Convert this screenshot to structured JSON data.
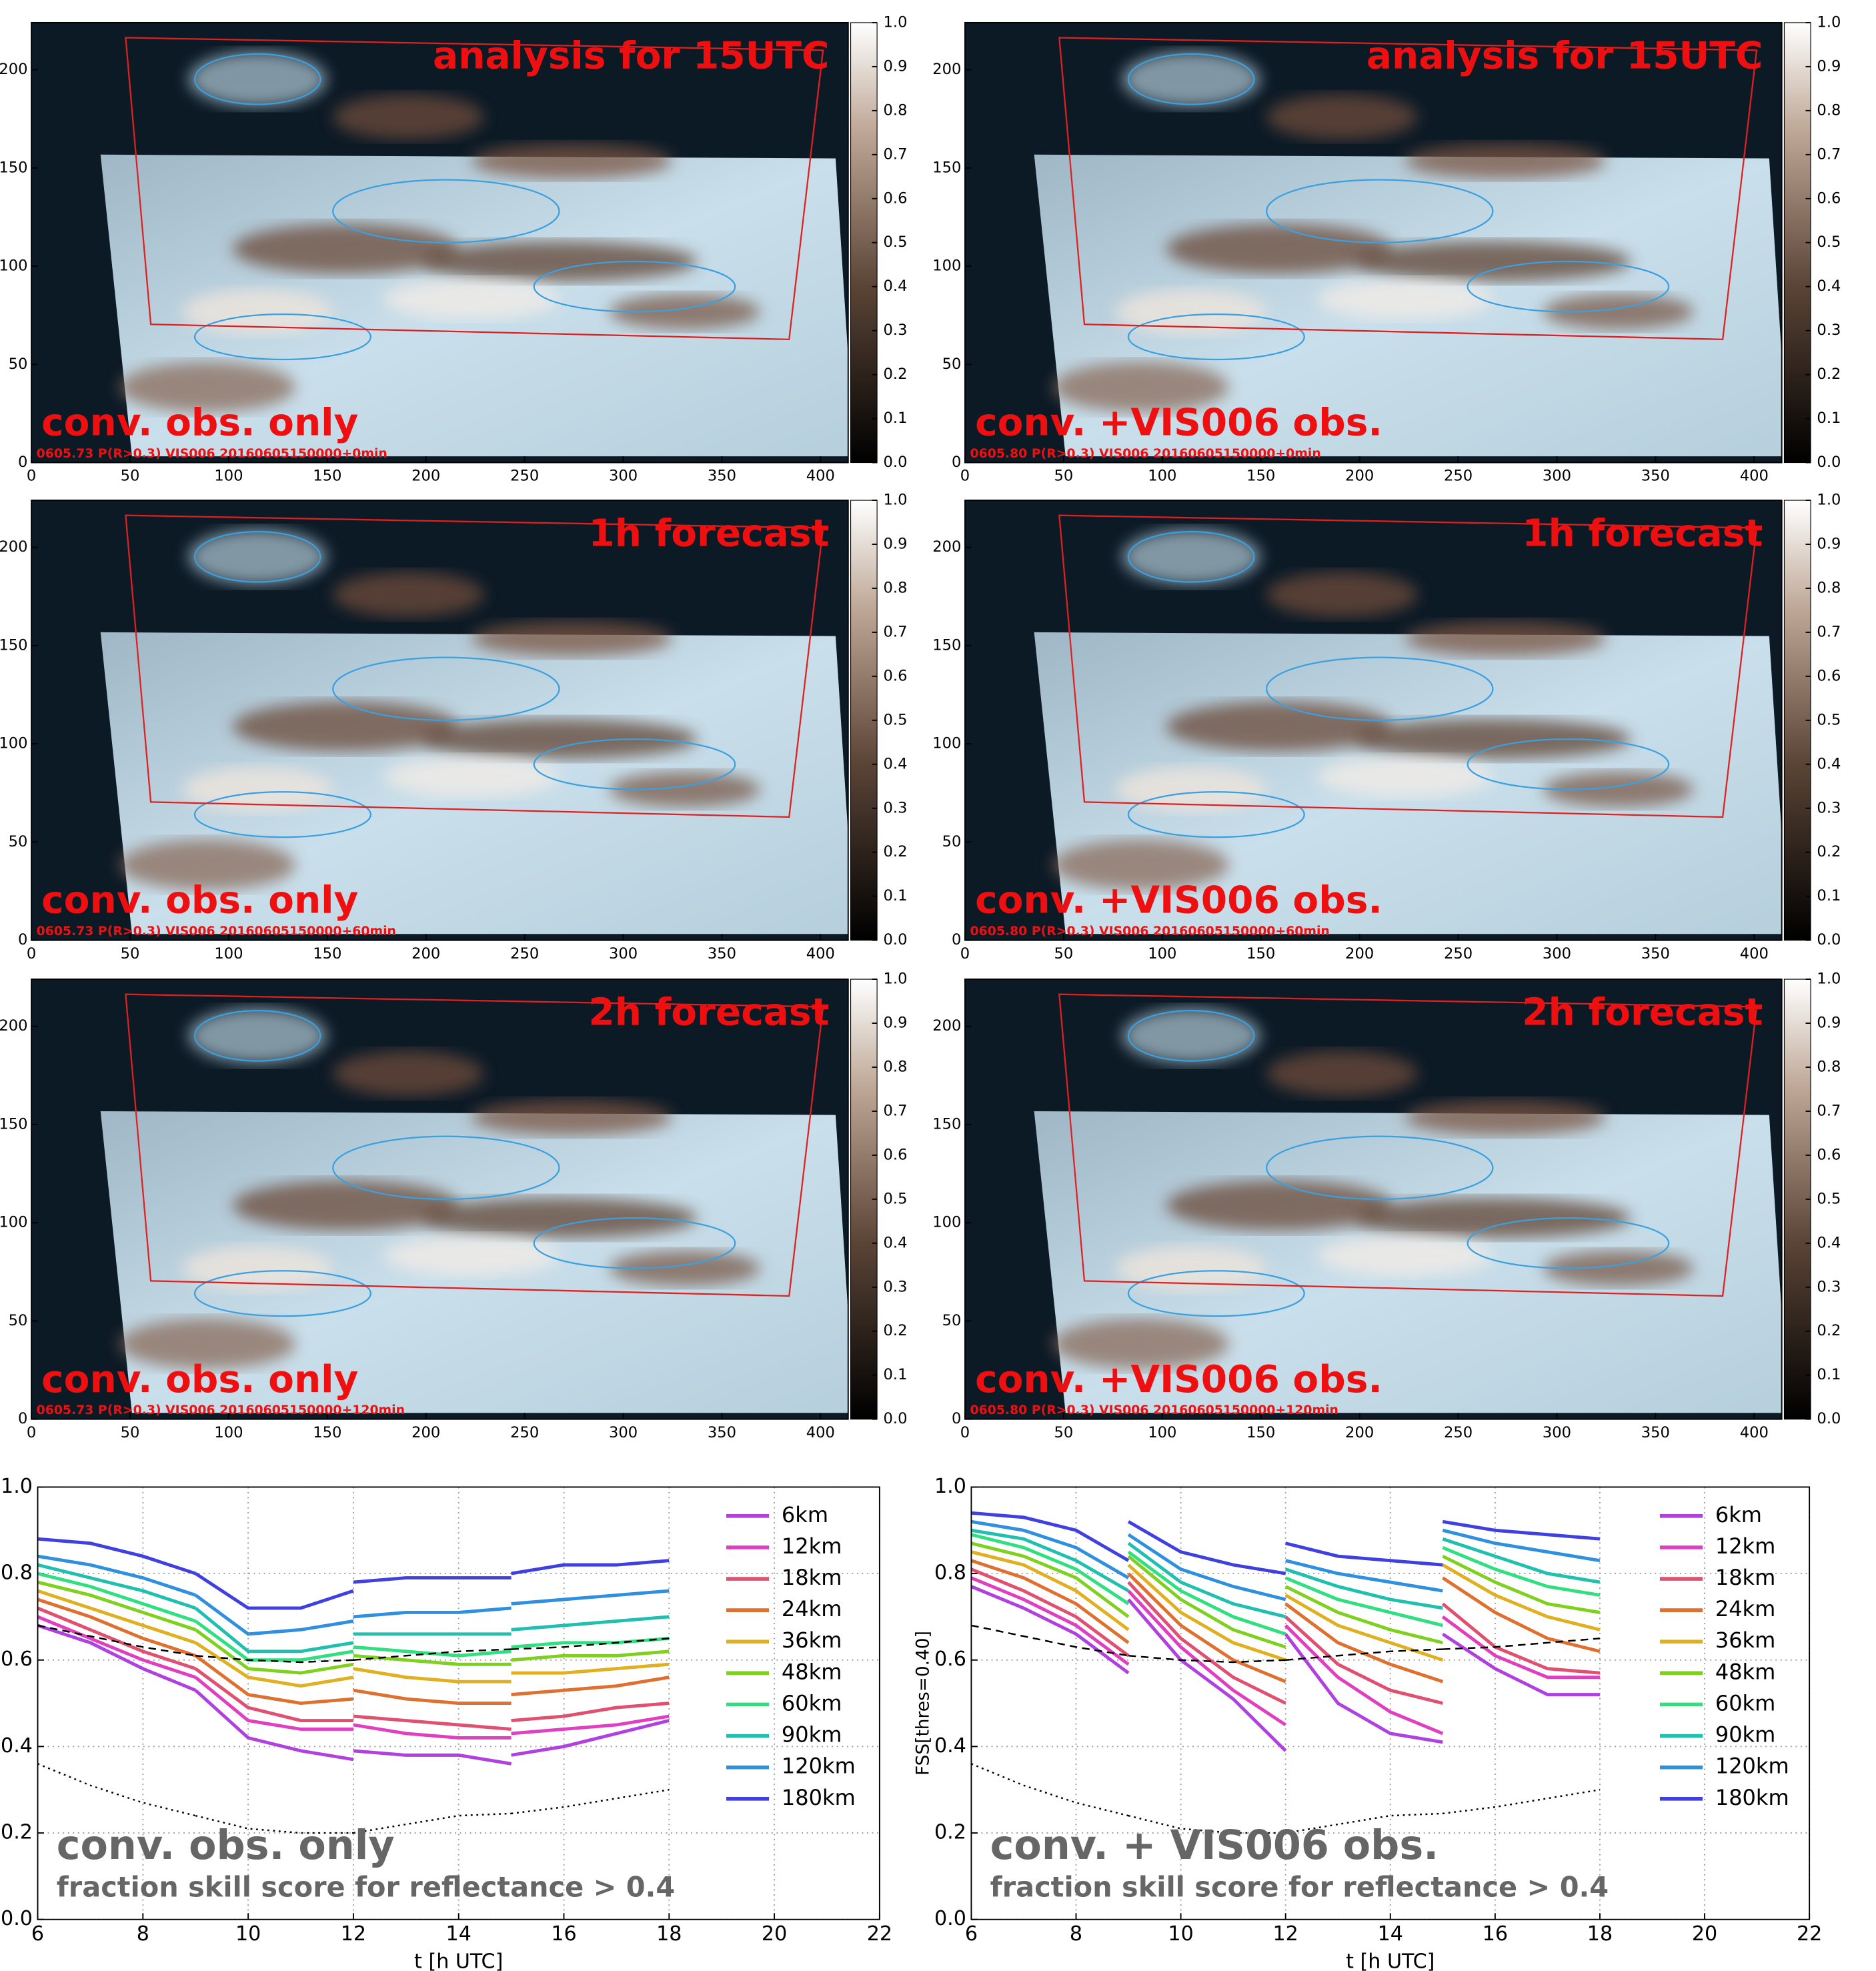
{
  "maps": {
    "xlim": [
      0,
      414
    ],
    "xticks": [
      0,
      50,
      100,
      150,
      200,
      250,
      300,
      350,
      400
    ],
    "ylim": [
      0,
      224
    ],
    "yticks": [
      0,
      50,
      100,
      150,
      200
    ],
    "colorbar_lim": [
      0,
      1
    ],
    "colorbar_ticks": [
      {
        "value": 0,
        "label": "0.0"
      },
      0.1,
      0.2,
      0.3,
      0.4,
      0.5,
      0.6,
      0.7,
      0.8,
      0.9,
      {
        "value": 1,
        "label": "1.0"
      }
    ],
    "panels": [
      {
        "title": "analysis for 15UTC",
        "label": "conv. obs. only",
        "caption": "0605.73 P(R>0.3) VIS006 20160605150000+0min"
      },
      {
        "title": "analysis for 15UTC",
        "label": "conv. +VIS006 obs.",
        "caption": "0605.80 P(R>0.3) VIS006 20160605150000+0min"
      },
      {
        "title": "1h forecast",
        "label": "conv. obs. only",
        "caption": "0605.73 P(R>0.3) VIS006 20160605150000+60min"
      },
      {
        "title": "1h forecast",
        "label": "conv. +VIS006 obs.",
        "caption": "0605.80 P(R>0.3) VIS006 20160605150000+60min"
      },
      {
        "title": "2h forecast",
        "label": "conv. obs. only",
        "caption": "0605.73 P(R>0.3) VIS006 20160605150000+120min"
      },
      {
        "title": "2h forecast",
        "label": "conv. +VIS006 obs.",
        "caption": "0605.80 P(R>0.3) VIS006 20160605150000+120min"
      }
    ]
  },
  "chart_data": [
    {
      "type": "line",
      "title": "conv. obs. only",
      "subtitle": "fraction skill score for reflectance > 0.4",
      "xlabel": "t [h UTC]",
      "xlim": [
        6,
        22
      ],
      "xticks": [
        6,
        8,
        10,
        12,
        14,
        16,
        18,
        20,
        22
      ],
      "ylim": [
        0,
        1
      ],
      "yticks": [
        {
          "value": 0,
          "label": "0.0"
        },
        0.2,
        0.4,
        0.6,
        0.8,
        {
          "value": 1,
          "label": "1.0"
        }
      ],
      "grid": true,
      "x": [
        6,
        7,
        8,
        9,
        9,
        9,
        10,
        11,
        12,
        12,
        12,
        13,
        14,
        15,
        15,
        15,
        16,
        17,
        18
      ],
      "series": [
        {
          "name": "6km",
          "color": "#b040e0",
          "values": [
            0.68,
            0.64,
            0.58,
            0.53,
            null,
            0.53,
            0.42,
            0.39,
            0.37,
            null,
            0.39,
            0.38,
            0.38,
            0.36,
            null,
            0.38,
            0.4,
            0.43,
            0.46
          ]
        },
        {
          "name": "12km",
          "color": "#e040c0",
          "values": [
            0.7,
            0.65,
            0.6,
            0.56,
            null,
            0.56,
            0.46,
            0.44,
            0.44,
            null,
            0.45,
            0.43,
            0.42,
            0.42,
            null,
            0.43,
            0.44,
            0.45,
            0.47
          ]
        },
        {
          "name": "18km",
          "color": "#e05070",
          "values": [
            0.72,
            0.67,
            0.62,
            0.58,
            null,
            0.58,
            0.49,
            0.46,
            0.46,
            null,
            0.47,
            0.46,
            0.45,
            0.44,
            null,
            0.46,
            0.47,
            0.49,
            0.5
          ]
        },
        {
          "name": "24km",
          "color": "#e07030",
          "values": [
            0.74,
            0.7,
            0.65,
            0.61,
            null,
            0.61,
            0.52,
            0.5,
            0.51,
            null,
            0.53,
            0.51,
            0.5,
            0.5,
            null,
            0.52,
            0.53,
            0.54,
            0.56
          ]
        },
        {
          "name": "36km",
          "color": "#e0b020",
          "values": [
            0.76,
            0.72,
            0.68,
            0.64,
            null,
            0.64,
            0.56,
            0.54,
            0.56,
            null,
            0.58,
            0.56,
            0.55,
            0.55,
            null,
            0.57,
            0.57,
            0.58,
            0.59
          ]
        },
        {
          "name": "48km",
          "color": "#80d020",
          "values": [
            0.78,
            0.75,
            0.71,
            0.67,
            null,
            0.67,
            0.58,
            0.57,
            0.59,
            null,
            0.61,
            0.6,
            0.59,
            0.59,
            null,
            0.6,
            0.61,
            0.61,
            0.62
          ]
        },
        {
          "name": "60km",
          "color": "#30e080",
          "values": [
            0.8,
            0.77,
            0.73,
            0.69,
            null,
            0.69,
            0.6,
            0.6,
            0.62,
            null,
            0.63,
            0.62,
            0.61,
            0.62,
            null,
            0.63,
            0.64,
            0.64,
            0.65
          ]
        },
        {
          "name": "90km",
          "color": "#20c0b0",
          "values": [
            0.82,
            0.79,
            0.76,
            0.72,
            null,
            0.72,
            0.62,
            0.62,
            0.64,
            null,
            0.66,
            0.66,
            0.66,
            0.66,
            null,
            0.67,
            0.68,
            0.69,
            0.7
          ]
        },
        {
          "name": "120km",
          "color": "#3090e0",
          "values": [
            0.84,
            0.82,
            0.79,
            0.75,
            null,
            0.75,
            0.66,
            0.67,
            0.69,
            null,
            0.7,
            0.71,
            0.71,
            0.72,
            null,
            0.73,
            0.74,
            0.75,
            0.76
          ]
        },
        {
          "name": "180km",
          "color": "#4040e0",
          "values": [
            0.88,
            0.87,
            0.84,
            0.8,
            null,
            0.8,
            0.72,
            0.72,
            0.76,
            null,
            0.78,
            0.79,
            0.79,
            0.79,
            null,
            0.8,
            0.82,
            0.82,
            0.83
          ]
        },
        {
          "color": "#000000",
          "line_style": "dashed",
          "values": [
            0.68,
            0.655,
            0.63,
            0.61,
            null,
            0.61,
            0.6,
            0.595,
            0.6,
            null,
            0.6,
            0.61,
            0.62,
            0.625,
            null,
            0.625,
            0.63,
            0.64,
            0.65
          ]
        },
        {
          "color": "#000000",
          "line_style": "dotted",
          "values": [
            0.36,
            0.31,
            0.27,
            0.24,
            null,
            0.24,
            0.21,
            0.2,
            0.2,
            null,
            0.2,
            0.22,
            0.24,
            0.245,
            null,
            0.245,
            0.26,
            0.28,
            0.3
          ]
        }
      ]
    },
    {
      "type": "line",
      "title": "conv. + VIS006 obs.",
      "subtitle": "fraction skill score for reflectance > 0.4",
      "xlabel": "t [h UTC]",
      "ylabel": "FSS[thres=0.40]",
      "xlim": [
        6,
        22
      ],
      "xticks": [
        6,
        8,
        10,
        12,
        14,
        16,
        18,
        20,
        22
      ],
      "ylim": [
        0,
        1
      ],
      "yticks": [
        {
          "value": 0,
          "label": "0.0"
        },
        0.2,
        0.4,
        0.6,
        0.8,
        {
          "value": 1,
          "label": "1.0"
        }
      ],
      "grid": true,
      "x": [
        6,
        7,
        8,
        9,
        9,
        9,
        10,
        11,
        12,
        12,
        12,
        13,
        14,
        15,
        15,
        15,
        16,
        17,
        18
      ],
      "series": [
        {
          "name": "6km",
          "color": "#b040e0",
          "values": [
            0.77,
            0.72,
            0.66,
            0.57,
            null,
            0.74,
            0.6,
            0.51,
            0.39,
            null,
            0.66,
            0.5,
            0.43,
            0.41,
            null,
            0.66,
            0.58,
            0.52,
            0.52
          ]
        },
        {
          "name": "12km",
          "color": "#e040c0",
          "values": [
            0.79,
            0.74,
            0.68,
            0.59,
            null,
            0.76,
            0.63,
            0.53,
            0.45,
            null,
            0.68,
            0.56,
            0.48,
            0.43,
            null,
            0.7,
            0.61,
            0.56,
            0.56
          ]
        },
        {
          "name": "18km",
          "color": "#e05070",
          "values": [
            0.81,
            0.76,
            0.7,
            0.61,
            null,
            0.78,
            0.65,
            0.56,
            0.5,
            null,
            0.7,
            0.59,
            0.53,
            0.5,
            null,
            0.73,
            0.63,
            0.58,
            0.57
          ]
        },
        {
          "name": "24km",
          "color": "#e07030",
          "values": [
            0.83,
            0.79,
            0.73,
            0.64,
            null,
            0.8,
            0.68,
            0.6,
            0.55,
            null,
            0.73,
            0.64,
            0.59,
            0.55,
            null,
            0.79,
            0.71,
            0.65,
            0.62
          ]
        },
        {
          "name": "36km",
          "color": "#e0b020",
          "values": [
            0.85,
            0.82,
            0.76,
            0.67,
            null,
            0.82,
            0.71,
            0.64,
            0.6,
            null,
            0.75,
            0.68,
            0.64,
            0.6,
            null,
            0.82,
            0.75,
            0.7,
            0.67
          ]
        },
        {
          "name": "48km",
          "color": "#80d020",
          "values": [
            0.87,
            0.84,
            0.79,
            0.7,
            null,
            0.84,
            0.74,
            0.67,
            0.63,
            null,
            0.77,
            0.71,
            0.67,
            0.64,
            null,
            0.84,
            0.78,
            0.73,
            0.71
          ]
        },
        {
          "name": "60km",
          "color": "#30e080",
          "values": [
            0.89,
            0.86,
            0.81,
            0.73,
            null,
            0.85,
            0.76,
            0.7,
            0.66,
            null,
            0.79,
            0.74,
            0.71,
            0.68,
            null,
            0.86,
            0.81,
            0.77,
            0.75
          ]
        },
        {
          "name": "90km",
          "color": "#20c0b0",
          "values": [
            0.9,
            0.88,
            0.83,
            0.76,
            null,
            0.87,
            0.78,
            0.73,
            0.7,
            null,
            0.81,
            0.77,
            0.74,
            0.72,
            null,
            0.88,
            0.84,
            0.8,
            0.78
          ]
        },
        {
          "name": "120km",
          "color": "#3090e0",
          "values": [
            0.92,
            0.9,
            0.86,
            0.79,
            null,
            0.89,
            0.81,
            0.77,
            0.74,
            null,
            0.83,
            0.8,
            0.78,
            0.76,
            null,
            0.9,
            0.87,
            0.85,
            0.83
          ]
        },
        {
          "name": "180km",
          "color": "#4040e0",
          "values": [
            0.94,
            0.93,
            0.9,
            0.83,
            null,
            0.92,
            0.85,
            0.82,
            0.8,
            null,
            0.87,
            0.84,
            0.83,
            0.82,
            null,
            0.92,
            0.9,
            0.89,
            0.88
          ]
        },
        {
          "color": "#000000",
          "line_style": "dashed",
          "values": [
            0.68,
            0.655,
            0.63,
            0.61,
            null,
            0.61,
            0.6,
            0.595,
            0.6,
            null,
            0.6,
            0.61,
            0.62,
            0.625,
            null,
            0.625,
            0.63,
            0.64,
            0.65
          ]
        },
        {
          "color": "#000000",
          "line_style": "dotted",
          "values": [
            0.36,
            0.31,
            0.27,
            0.24,
            null,
            0.24,
            0.21,
            0.2,
            0.2,
            null,
            0.2,
            0.22,
            0.24,
            0.245,
            null,
            0.245,
            0.26,
            0.28,
            0.3
          ]
        }
      ]
    }
  ]
}
